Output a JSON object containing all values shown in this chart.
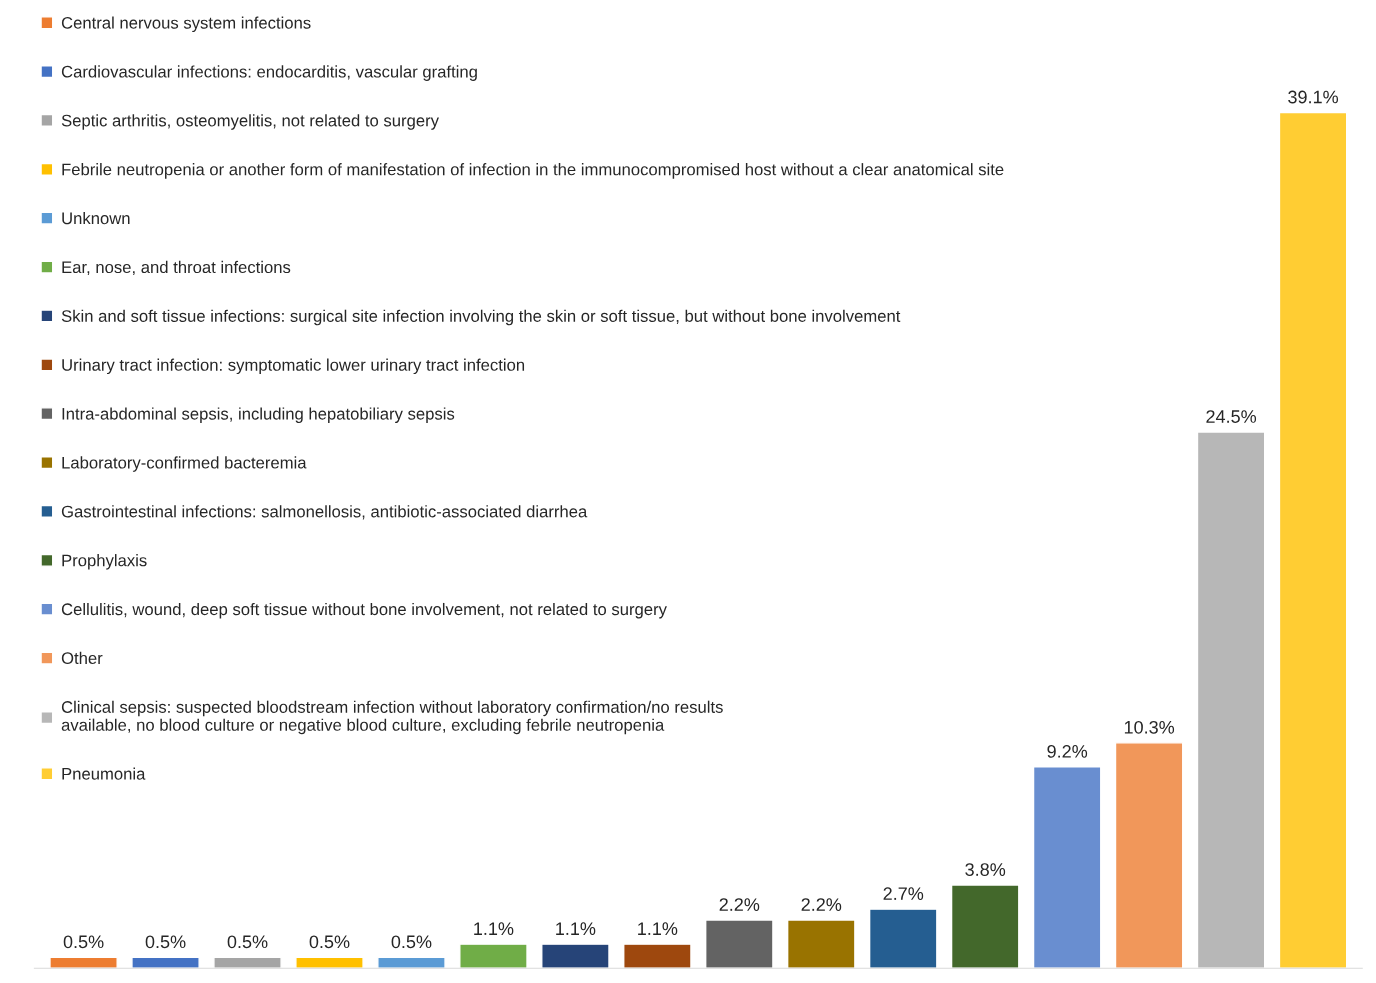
{
  "chart_data": {
    "type": "bar",
    "categories": [
      null,
      null,
      null,
      null,
      null,
      null,
      null,
      null,
      null,
      null,
      null,
      null,
      null,
      null,
      null,
      null
    ],
    "series": [
      {
        "name": "Central nervous system infections",
        "color": "#ed7d31",
        "values": [
          0.5,
          null,
          null,
          null,
          null,
          null,
          null,
          null,
          null,
          null,
          null,
          null,
          null,
          null,
          null,
          null
        ],
        "value_labels": [
          "0.5%",
          null,
          null,
          null,
          null,
          null,
          null,
          null,
          null,
          null,
          null,
          null,
          null,
          null,
          null,
          null
        ]
      },
      {
        "name": "Cardiovascular infections: endocarditis, vascular grafting",
        "color": "#4472c4",
        "values": [
          null,
          0.5,
          null,
          null,
          null,
          null,
          null,
          null,
          null,
          null,
          null,
          null,
          null,
          null,
          null,
          null
        ],
        "value_labels": [
          null,
          "0.5%",
          null,
          null,
          null,
          null,
          null,
          null,
          null,
          null,
          null,
          null,
          null,
          null,
          null,
          null
        ]
      },
      {
        "name": "Septic arthritis, osteomyelitis, not related to surgery",
        "color": "#a5a5a5",
        "values": [
          null,
          null,
          0.5,
          null,
          null,
          null,
          null,
          null,
          null,
          null,
          null,
          null,
          null,
          null,
          null,
          null
        ],
        "value_labels": [
          null,
          null,
          "0.5%",
          null,
          null,
          null,
          null,
          null,
          null,
          null,
          null,
          null,
          null,
          null,
          null,
          null
        ]
      },
      {
        "name": "Febrile neutropenia or another form of manifestation of infection in the immunocompromised host without a clear anatomical site",
        "color": "#ffc000",
        "values": [
          null,
          null,
          null,
          0.5,
          null,
          null,
          null,
          null,
          null,
          null,
          null,
          null,
          null,
          null,
          null,
          null
        ],
        "value_labels": [
          null,
          null,
          null,
          "0.5%",
          null,
          null,
          null,
          null,
          null,
          null,
          null,
          null,
          null,
          null,
          null,
          null
        ]
      },
      {
        "name": "Unknown",
        "color": "#5b9bd5",
        "values": [
          null,
          null,
          null,
          null,
          0.5,
          null,
          null,
          null,
          null,
          null,
          null,
          null,
          null,
          null,
          null,
          null
        ],
        "value_labels": [
          null,
          null,
          null,
          null,
          "0.5%",
          null,
          null,
          null,
          null,
          null,
          null,
          null,
          null,
          null,
          null,
          null
        ]
      },
      {
        "name": "Ear, nose, and throat infections",
        "color": "#70ad47",
        "values": [
          null,
          null,
          null,
          null,
          null,
          1.1,
          null,
          null,
          null,
          null,
          null,
          null,
          null,
          null,
          null,
          null
        ],
        "value_labels": [
          null,
          null,
          null,
          null,
          null,
          "1.1%",
          null,
          null,
          null,
          null,
          null,
          null,
          null,
          null,
          null,
          null
        ]
      },
      {
        "name": "Skin and soft tissue infections: surgical site infection involving the skin or soft tissue, but without bone involvement",
        "color": "#264478",
        "values": [
          null,
          null,
          null,
          null,
          null,
          null,
          1.1,
          null,
          null,
          null,
          null,
          null,
          null,
          null,
          null,
          null
        ],
        "value_labels": [
          null,
          null,
          null,
          null,
          null,
          null,
          "1.1%",
          null,
          null,
          null,
          null,
          null,
          null,
          null,
          null,
          null
        ]
      },
      {
        "name": "Urinary tract infection: symptomatic lower urinary tract infection",
        "color": "#9e480e",
        "values": [
          null,
          null,
          null,
          null,
          null,
          null,
          null,
          1.1,
          null,
          null,
          null,
          null,
          null,
          null,
          null,
          null
        ],
        "value_labels": [
          null,
          null,
          null,
          null,
          null,
          null,
          null,
          "1.1%",
          null,
          null,
          null,
          null,
          null,
          null,
          null,
          null
        ]
      },
      {
        "name": "Intra-abdominal sepsis, including hepatobiliary sepsis",
        "color": "#636363",
        "values": [
          null,
          null,
          null,
          null,
          null,
          null,
          null,
          null,
          2.2,
          null,
          null,
          null,
          null,
          null,
          null,
          null
        ],
        "value_labels": [
          null,
          null,
          null,
          null,
          null,
          null,
          null,
          null,
          "2.2%",
          null,
          null,
          null,
          null,
          null,
          null,
          null
        ]
      },
      {
        "name": "Laboratory-confirmed bacteremia",
        "color": "#997300",
        "values": [
          null,
          null,
          null,
          null,
          null,
          null,
          null,
          null,
          null,
          2.2,
          null,
          null,
          null,
          null,
          null,
          null
        ],
        "value_labels": [
          null,
          null,
          null,
          null,
          null,
          null,
          null,
          null,
          null,
          "2.2%",
          null,
          null,
          null,
          null,
          null,
          null
        ]
      },
      {
        "name": "Gastrointestinal infections: salmonellosis, antibiotic-associated diarrhea",
        "color": "#255e91",
        "values": [
          null,
          null,
          null,
          null,
          null,
          null,
          null,
          null,
          null,
          null,
          2.7,
          null,
          null,
          null,
          null,
          null
        ],
        "value_labels": [
          null,
          null,
          null,
          null,
          null,
          null,
          null,
          null,
          null,
          null,
          "2.7%",
          null,
          null,
          null,
          null,
          null
        ]
      },
      {
        "name": "Prophylaxis",
        "color": "#43682b",
        "values": [
          null,
          null,
          null,
          null,
          null,
          null,
          null,
          null,
          null,
          null,
          null,
          3.8,
          null,
          null,
          null,
          null
        ],
        "value_labels": [
          null,
          null,
          null,
          null,
          null,
          null,
          null,
          null,
          null,
          null,
          null,
          "3.8%",
          null,
          null,
          null,
          null
        ]
      },
      {
        "name": "Cellulitis, wound, deep soft tissue without bone involvement, not related to surgery",
        "color": "#698ed0",
        "values": [
          null,
          null,
          null,
          null,
          null,
          null,
          null,
          null,
          null,
          null,
          null,
          null,
          9.2,
          null,
          null,
          null
        ],
        "value_labels": [
          null,
          null,
          null,
          null,
          null,
          null,
          null,
          null,
          null,
          null,
          null,
          null,
          "9.2%",
          null,
          null,
          null
        ]
      },
      {
        "name": "Other",
        "color": "#f1975a",
        "values": [
          null,
          null,
          null,
          null,
          null,
          null,
          null,
          null,
          null,
          null,
          null,
          null,
          null,
          10.3,
          null,
          null
        ],
        "value_labels": [
          null,
          null,
          null,
          null,
          null,
          null,
          null,
          null,
          null,
          null,
          null,
          null,
          null,
          "10.3%",
          null,
          null
        ]
      },
      {
        "name": "Clinical sepsis: suspected bloodstream infection without laboratory confirmation/no results\navailable, no blood culture or negative blood culture, excluding febrile neutropenia",
        "color": "#b7b7b7",
        "values": [
          null,
          null,
          null,
          null,
          null,
          null,
          null,
          null,
          null,
          null,
          null,
          null,
          null,
          null,
          24.5,
          null
        ],
        "value_labels": [
          null,
          null,
          null,
          null,
          null,
          null,
          null,
          null,
          null,
          null,
          null,
          null,
          null,
          null,
          "24.5%",
          null
        ]
      },
      {
        "name": "Pneumonia",
        "color": "#ffcd33",
        "values": [
          null,
          null,
          null,
          null,
          null,
          null,
          null,
          null,
          null,
          null,
          null,
          null,
          null,
          null,
          null,
          39.1
        ],
        "value_labels": [
          null,
          null,
          null,
          null,
          null,
          null,
          null,
          null,
          null,
          null,
          null,
          null,
          null,
          null,
          null,
          "39.1%"
        ]
      }
    ],
    "stacked": true,
    "legend": "top left"
  }
}
